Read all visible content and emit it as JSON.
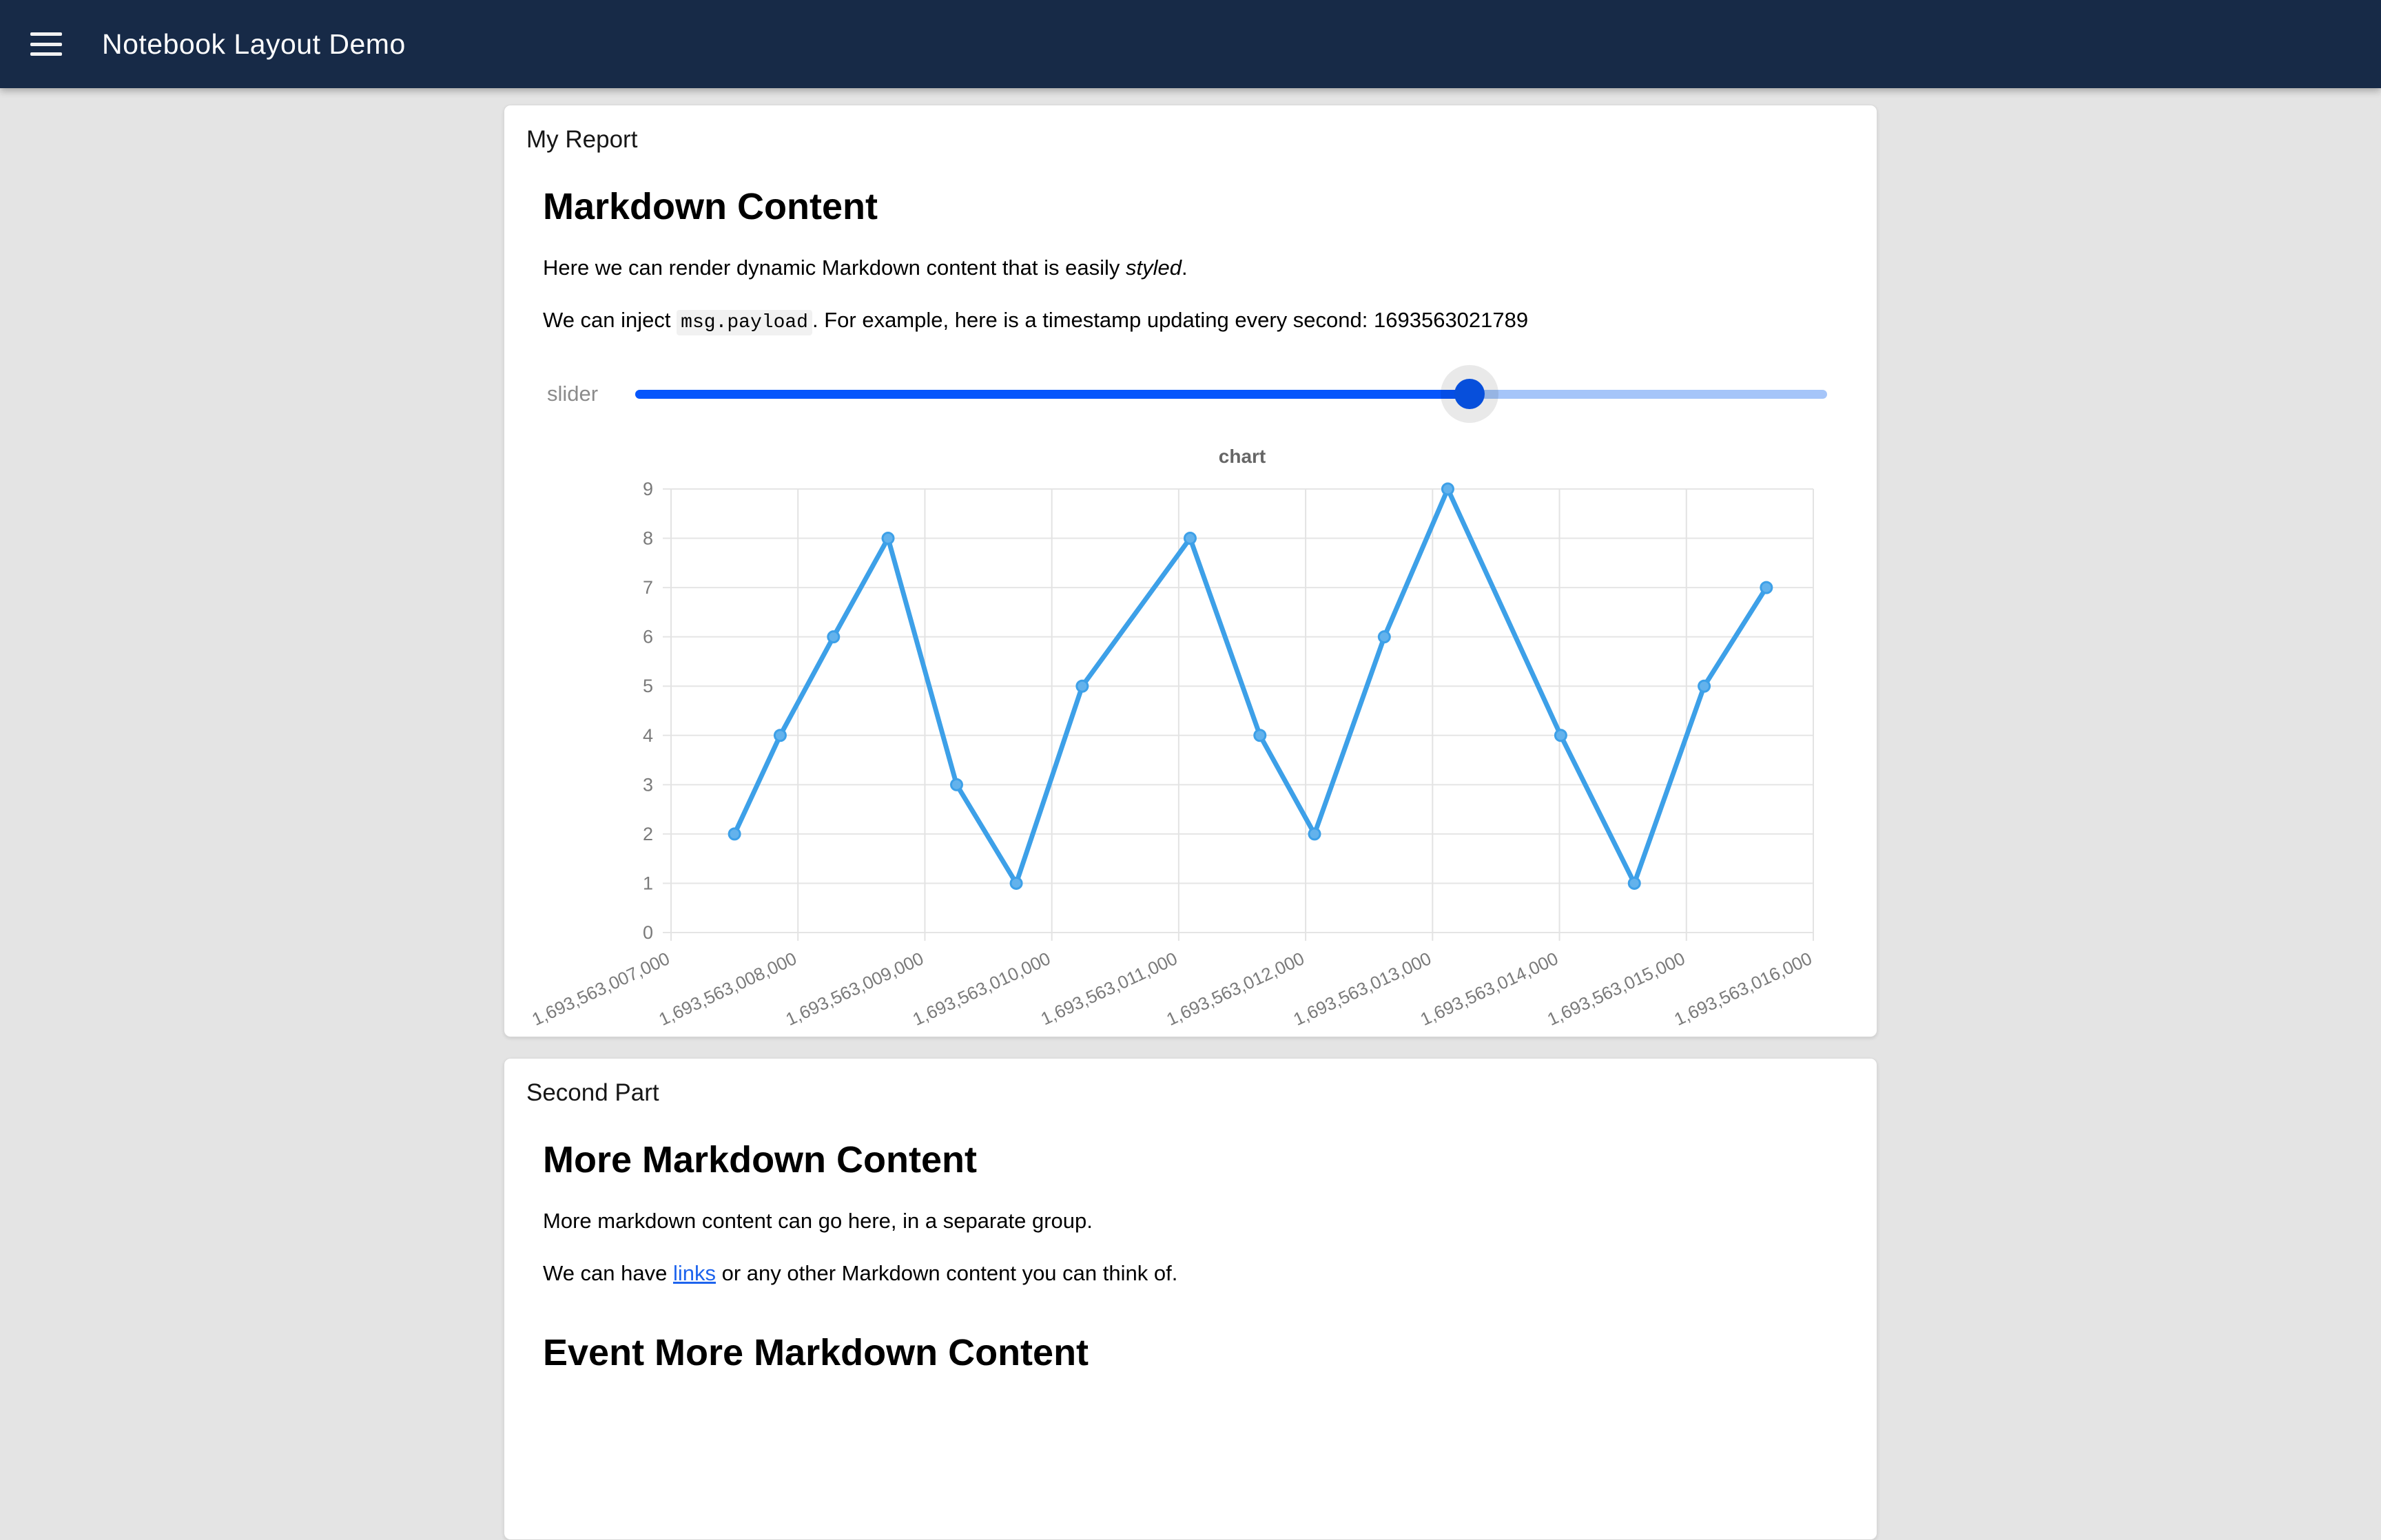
{
  "header": {
    "title": "Notebook Layout Demo"
  },
  "report_card": {
    "group_title": "My Report",
    "heading": "Markdown Content",
    "para1": {
      "before": "Here we can render dynamic Markdown content that is easily ",
      "italic": "styled",
      "after": "."
    },
    "para2": {
      "before": "We can inject ",
      "code": "msg.payload",
      "mid": ". For example, here is a timestamp updating every second: ",
      "timestamp": "1693563021789"
    },
    "slider": {
      "label": "slider",
      "value_percent": 70
    }
  },
  "chart_data": {
    "type": "line",
    "title": "chart",
    "legend": false,
    "grid": true,
    "line_color": "#3da0e8",
    "point_fill": "#63b2ec",
    "xlim": [
      1693563007000,
      1693563016000
    ],
    "ylim": [
      0,
      9
    ],
    "y_ticks": [
      0,
      1,
      2,
      3,
      4,
      5,
      6,
      7,
      8,
      9
    ],
    "x_tick_values": [
      1693563007000,
      1693563008000,
      1693563009000,
      1693563010000,
      1693563011000,
      1693563012000,
      1693563013000,
      1693563014000,
      1693563015000,
      1693563016000
    ],
    "x_tick_labels": [
      "1,693,563,007,000",
      "1,693,563,008,000",
      "1,693,563,009,000",
      "1,693,563,010,000",
      "1,693,563,011,000",
      "1,693,563,012,000",
      "1,693,563,013,000",
      "1,693,563,014,000",
      "1,693,563,015,000",
      "1,693,563,016,000"
    ],
    "x": [
      1693563007500,
      1693563007860,
      1693563008280,
      1693563008710,
      1693563009250,
      1693563009720,
      1693563010240,
      1693563011090,
      1693563011640,
      1693563012070,
      1693563012620,
      1693563013120,
      1693563014010,
      1693563014590,
      1693563015140,
      1693563015630
    ],
    "y": [
      2,
      4,
      6,
      8,
      3,
      1,
      5,
      8,
      4,
      2,
      6,
      9,
      4,
      1,
      5,
      7
    ]
  },
  "second_card": {
    "group_title": "Second Part",
    "heading": "More Markdown Content",
    "para1": "More markdown content can go here, in a separate group.",
    "para2": {
      "before": "We can have ",
      "link": "links",
      "after": " or any other Markdown content you can think of."
    },
    "heading2": "Event More Markdown Content"
  },
  "colors": {
    "appbar": "#172a47",
    "page_bg": "#e4e4e4",
    "slider_fill": "#0556fc",
    "slider_track": "#a5c5f9",
    "chart_line": "#3da0e8",
    "link": "#1d63ed"
  }
}
